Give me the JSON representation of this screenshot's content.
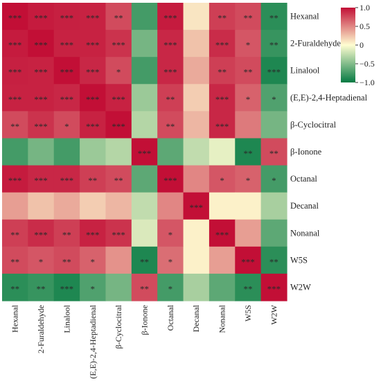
{
  "chart_data": {
    "type": "heatmap",
    "title": "",
    "xlabel": "",
    "ylabel": "",
    "rows": [
      "Hexanal",
      "2-Furaldehyde",
      "Linalool",
      "(E,E)-2,4-Heptadienal",
      "β-Cyclocitral",
      "β-Ionone",
      "Octanal",
      "Decanal",
      "Nonanal",
      "W5S",
      "W2W"
    ],
    "columns": [
      "Hexanal",
      "2-Furaldehyde",
      "Linalool",
      "(E,E)-2,4-Heptadienal",
      "β-Cyclocitral",
      "β-Ionone",
      "Octanal",
      "Decanal",
      "Nonanal",
      "W5S",
      "W2W"
    ],
    "values": [
      [
        1.0,
        0.95,
        0.93,
        0.92,
        0.75,
        -0.75,
        0.95,
        0.1,
        0.8,
        0.75,
        -0.85
      ],
      [
        0.95,
        1.0,
        0.92,
        0.92,
        0.85,
        -0.55,
        0.9,
        0.25,
        0.88,
        0.7,
        -0.8
      ],
      [
        0.93,
        0.92,
        1.0,
        0.9,
        0.75,
        -0.75,
        0.9,
        0.35,
        0.8,
        0.75,
        -0.9
      ],
      [
        0.92,
        0.92,
        0.9,
        1.0,
        0.92,
        -0.4,
        0.8,
        0.2,
        0.9,
        0.65,
        -0.7
      ],
      [
        0.75,
        0.85,
        0.75,
        0.92,
        1.0,
        -0.3,
        0.75,
        0.3,
        0.9,
        0.55,
        -0.55
      ],
      [
        -0.75,
        -0.55,
        -0.75,
        -0.4,
        -0.3,
        1.0,
        -0.65,
        -0.25,
        -0.1,
        -0.9,
        0.75
      ],
      [
        0.95,
        0.9,
        0.9,
        0.8,
        0.75,
        -0.65,
        1.0,
        0.5,
        0.7,
        0.65,
        -0.75
      ],
      [
        0.4,
        0.25,
        0.35,
        0.2,
        0.3,
        -0.25,
        0.5,
        1.0,
        0.05,
        0.05,
        -0.35
      ],
      [
        0.8,
        0.88,
        0.8,
        0.92,
        0.85,
        -0.15,
        0.7,
        0.05,
        1.0,
        0.4,
        -0.65
      ],
      [
        0.75,
        0.7,
        0.75,
        0.65,
        0.45,
        -0.9,
        0.6,
        0.05,
        0.4,
        1.0,
        -0.85
      ],
      [
        -0.85,
        -0.8,
        -0.9,
        -0.7,
        -0.55,
        0.75,
        -0.75,
        -0.35,
        -0.65,
        -0.85,
        1.0
      ]
    ],
    "significance": [
      [
        "***",
        "***",
        "***",
        "***",
        "**",
        "",
        "***",
        "",
        "**",
        "**",
        "**"
      ],
      [
        "***",
        "***",
        "***",
        "***",
        "***",
        "",
        "***",
        "",
        "***",
        "*",
        "**"
      ],
      [
        "***",
        "***",
        "***",
        "***",
        "*",
        "",
        "***",
        "",
        "**",
        "**",
        "***"
      ],
      [
        "***",
        "***",
        "***",
        "***",
        "***",
        "",
        "**",
        "",
        "***",
        "*",
        "*"
      ],
      [
        "**",
        "***",
        "*",
        "***",
        "***",
        "",
        "**",
        "",
        "***",
        "",
        ""
      ],
      [
        "",
        "",
        "",
        "",
        "",
        "***",
        "",
        "",
        "",
        "**",
        "**"
      ],
      [
        "***",
        "***",
        "***",
        "**",
        "**",
        "",
        "***",
        "",
        "*",
        "*",
        "*"
      ],
      [
        "",
        "",
        "",
        "",
        "",
        "",
        "",
        "***",
        "",
        "",
        ""
      ],
      [
        "**",
        "***",
        "**",
        "***",
        "***",
        "",
        "*",
        "",
        "***",
        "",
        ""
      ],
      [
        "**",
        "*",
        "**",
        "*",
        "",
        "**",
        "*",
        "",
        "",
        "***",
        "**"
      ],
      [
        "**",
        "**",
        "***",
        "*",
        "",
        "**",
        "*",
        "",
        "",
        "**",
        "***"
      ]
    ],
    "color_scale": {
      "min": -1.0,
      "max": 1.0,
      "ticks": [
        "1.0",
        "0.5",
        "0",
        "−0.5",
        "−1.0"
      ],
      "tick_values": [
        1.0,
        0.5,
        0,
        -0.5,
        -1.0
      ],
      "colors": [
        "#057a43",
        "#fffdd1",
        "#c20f36"
      ]
    },
    "legend": "right",
    "grid": false
  }
}
